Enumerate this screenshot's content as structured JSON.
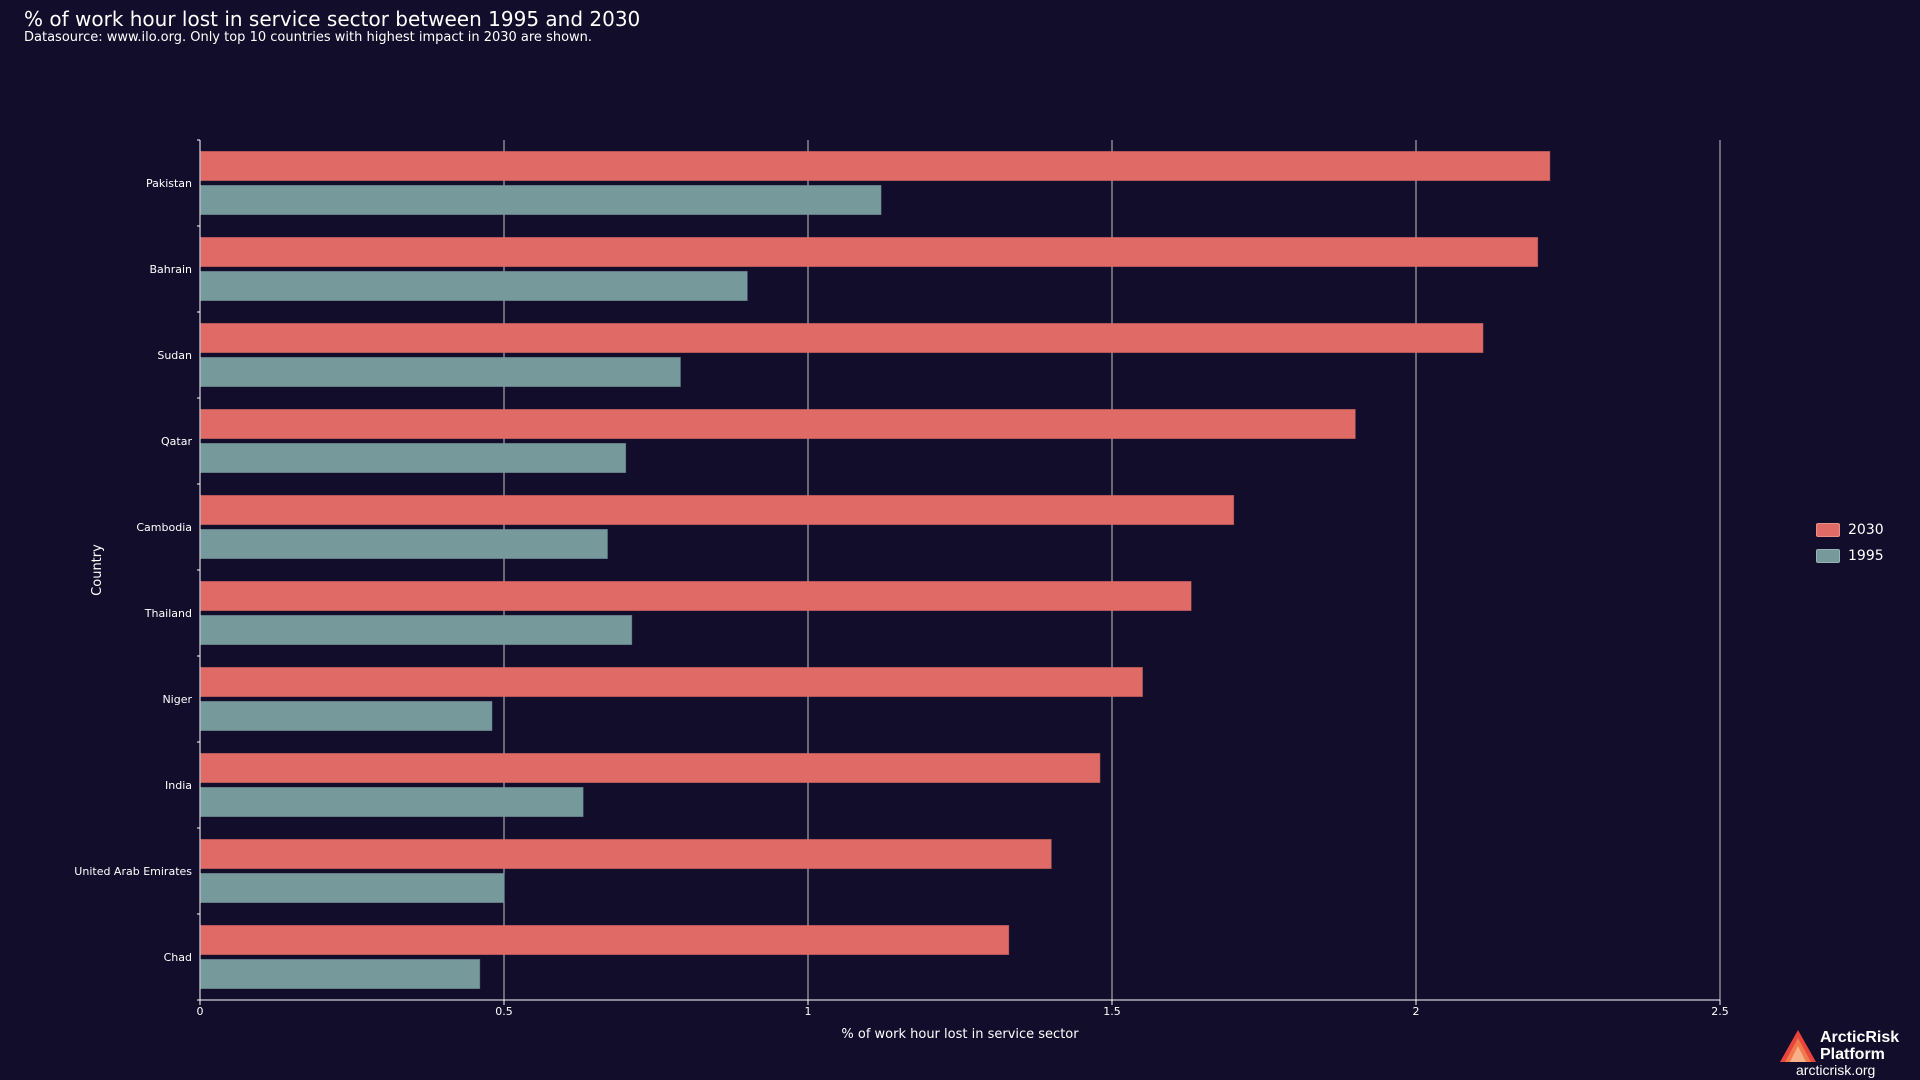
{
  "header": {
    "title": "% of work hour lost in service sector between 1995 and 2030",
    "subtitle": "Datasource: www.ilo.org. Only top 10 countries with highest impact in 2030 are shown."
  },
  "colors": {
    "background": "#110d2a",
    "series_2030": "#df6a66",
    "series_1995": "#76999c",
    "grid": "#ffffff",
    "text": "#ffffff"
  },
  "chart_data": {
    "type": "bar",
    "orientation": "horizontal",
    "title": "% of work hour lost in service sector between 1995 and 2030",
    "xlabel": "% of work hour lost in service sector",
    "ylabel": "Country",
    "xlim": [
      0,
      2.5
    ],
    "xticks": [
      0,
      0.5,
      1,
      1.5,
      2,
      2.5
    ],
    "xtick_labels": [
      "0",
      "0.5",
      "1",
      "1.5",
      "2",
      "2.5"
    ],
    "grid": true,
    "legend_position": "right",
    "categories": [
      "Pakistan",
      "Bahrain",
      "Sudan",
      "Qatar",
      "Cambodia",
      "Thailand",
      "Niger",
      "India",
      "United Arab Emirates",
      "Chad"
    ],
    "series": [
      {
        "name": "2030",
        "values": [
          2.22,
          2.2,
          2.11,
          1.9,
          1.7,
          1.63,
          1.55,
          1.48,
          1.4,
          1.33
        ]
      },
      {
        "name": "1995",
        "values": [
          1.12,
          0.9,
          0.79,
          0.7,
          0.67,
          0.71,
          0.48,
          0.63,
          0.5,
          0.46
        ]
      }
    ]
  },
  "logo": {
    "name_line1": "ArcticRisk",
    "name_line2": "Platform",
    "url": "arcticrisk.org"
  }
}
